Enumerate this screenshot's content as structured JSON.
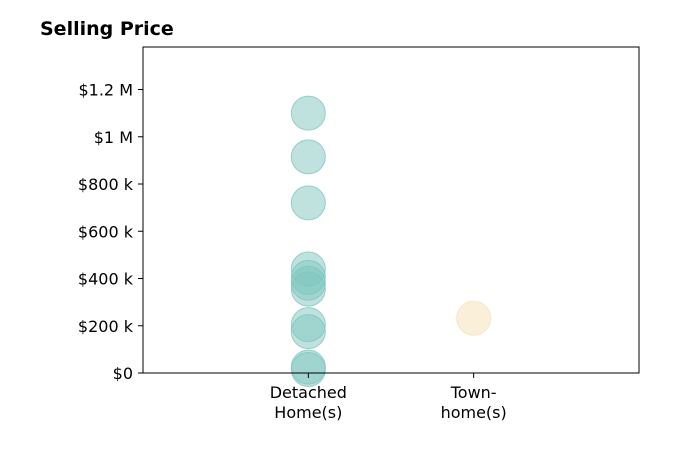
{
  "chart_data": {
    "type": "scatter",
    "title": "Selling Price",
    "xlabel": "",
    "ylabel": "",
    "categories": [
      {
        "lines": [
          "Detached",
          "Home(s)"
        ],
        "color": "#7fc6bf"
      },
      {
        "lines": [
          "Town-",
          "home(s)"
        ],
        "color": "#f5e1b4"
      }
    ],
    "series": [
      {
        "category_index": 0,
        "values": [
          1100000,
          915000,
          720000,
          440000,
          405000,
          380000,
          355000,
          205000,
          175000,
          25000,
          15000
        ]
      },
      {
        "category_index": 1,
        "values": [
          232000
        ]
      }
    ],
    "yticks": [
      {
        "value": 0,
        "label": "$0"
      },
      {
        "value": 200000,
        "label": "$200 k"
      },
      {
        "value": 400000,
        "label": "$400 k"
      },
      {
        "value": 600000,
        "label": "$600 k"
      },
      {
        "value": 800000,
        "label": "$800 k"
      },
      {
        "value": 1000000,
        "label": "$1 M"
      },
      {
        "value": 1200000,
        "label": "$1.2 M"
      }
    ],
    "ylim": [
      0,
      1380000
    ],
    "xlim": [
      -1,
      2
    ],
    "grid": false,
    "legend": "none"
  }
}
